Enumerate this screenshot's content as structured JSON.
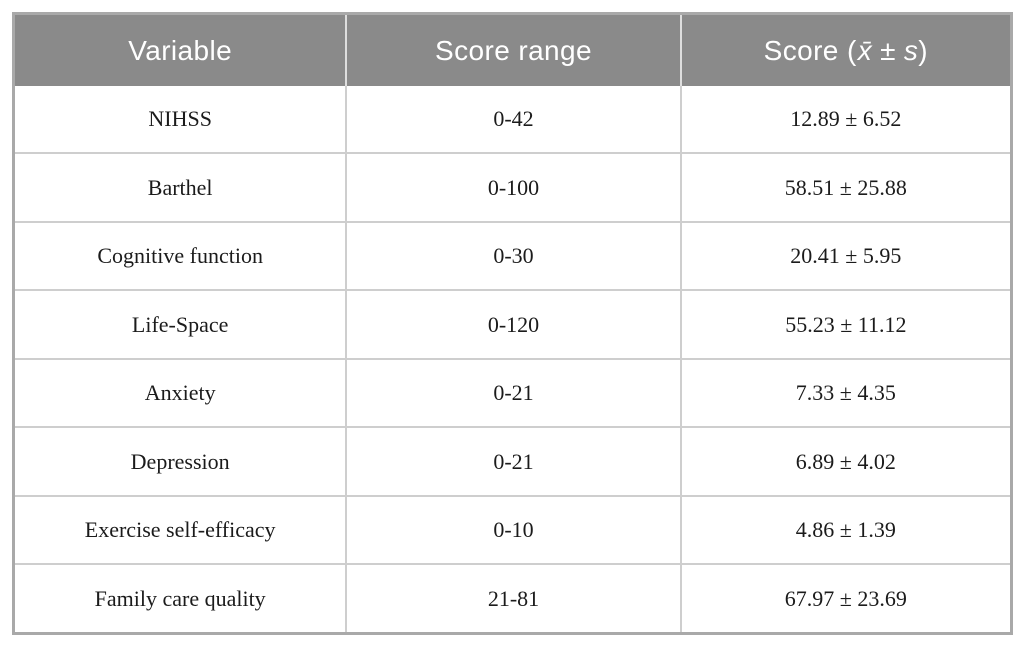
{
  "table": {
    "columns": {
      "variable": "Variable",
      "score_range": "Score range",
      "score_label": "Score (x̄ ± s)",
      "score_parts": {
        "prefix": "Score (",
        "xbar": "x̄",
        "pm": "±",
        "s": "s",
        "suffix": ")"
      }
    },
    "rows": [
      {
        "variable": "NIHSS",
        "range": "0-42",
        "score": "12.89 ± 6.52"
      },
      {
        "variable": "Barthel",
        "range": "0-100",
        "score": "58.51 ± 25.88"
      },
      {
        "variable": "Cognitive function",
        "range": "0-30",
        "score": "20.41 ± 5.95"
      },
      {
        "variable": "Life-Space",
        "range": "0-120",
        "score": "55.23 ± 11.12"
      },
      {
        "variable": "Anxiety",
        "range": "0-21",
        "score": "7.33 ± 4.35"
      },
      {
        "variable": "Depression",
        "range": "0-21",
        "score": "6.89 ± 4.02"
      },
      {
        "variable": "Exercise self-efficacy",
        "range": "0-10",
        "score": "4.86 ± 1.39"
      },
      {
        "variable": "Family care quality",
        "range": "21-81",
        "score": "67.97 ± 23.69"
      }
    ]
  },
  "colors": {
    "header_bg": "#8a8a8a",
    "header_text": "#ffffff",
    "outer_border": "#a9a9a9",
    "grid_line": "#cecece",
    "header_divider": "#dedede",
    "body_text": "#1b1b1b",
    "page_bg": "#ffffff"
  }
}
